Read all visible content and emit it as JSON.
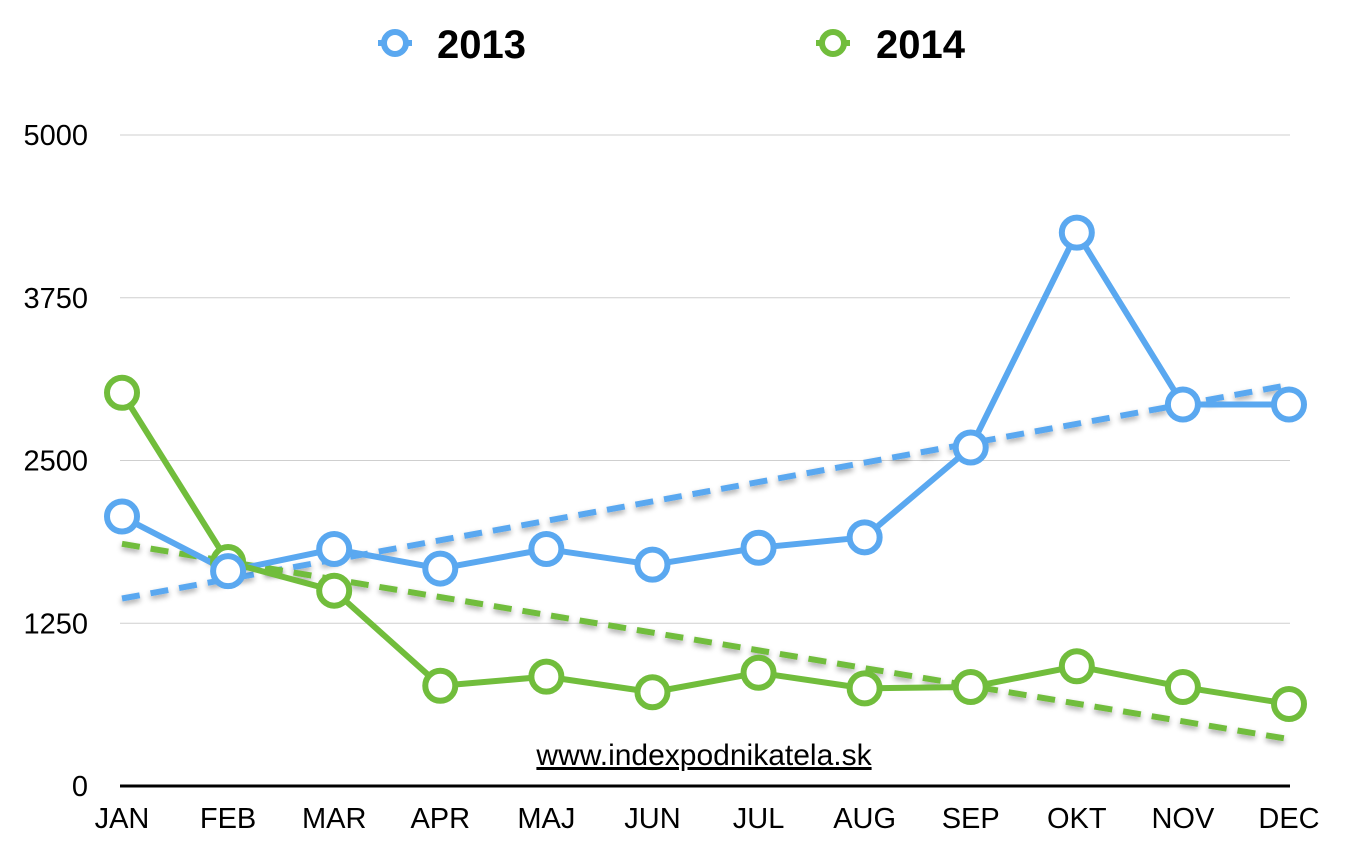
{
  "chart_data": {
    "type": "line",
    "categories": [
      "JAN",
      "FEB",
      "MAR",
      "APR",
      "MAJ",
      "JUN",
      "JUL",
      "AUG",
      "SEP",
      "OKT",
      "NOV",
      "DEC"
    ],
    "series": [
      {
        "name": "2013",
        "color": "#5aa8f0",
        "values": [
          2070,
          1650,
          1820,
          1670,
          1820,
          1700,
          1830,
          1910,
          2600,
          4250,
          2930,
          2930
        ],
        "trendline": {
          "start": 1440,
          "end": 3080
        }
      },
      {
        "name": "2014",
        "color": "#71bd3c",
        "values": [
          3020,
          1720,
          1500,
          770,
          840,
          720,
          870,
          750,
          760,
          920,
          760,
          630
        ],
        "trendline": {
          "start": 1860,
          "end": 360
        }
      }
    ],
    "yticks": [
      "0",
      "1250",
      "2500",
      "3750",
      "5000"
    ],
    "ylim": [
      0,
      5000
    ],
    "grid": true,
    "legend_position": "top-center",
    "annotation": "www.indexpodnikatela.sk"
  }
}
